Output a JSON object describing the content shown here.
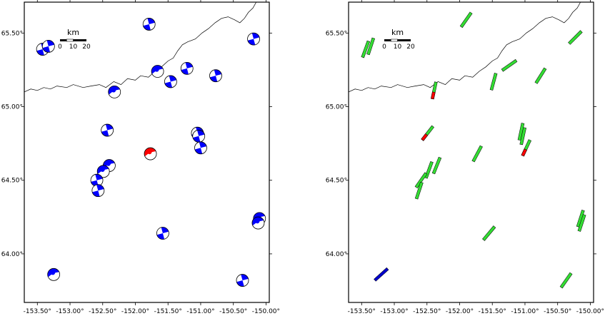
{
  "maps": [
    {
      "id": "left",
      "symbol": "beachball",
      "x_ticks": [
        "-153.50°",
        "-153.00°",
        "-152.50°",
        "-152.00°",
        "-151.50°",
        "-151.00°",
        "-150.50°",
        "-150.00°"
      ],
      "y_ticks": [
        "65.50°",
        "65.00°",
        "64.50°",
        "64.00°"
      ],
      "scale_bar": {
        "unit": "km",
        "labels": [
          "0",
          "10",
          "20"
        ]
      },
      "events": [
        {
          "lon": -153.42,
          "lat": 65.39,
          "color": "#0000ff",
          "style": "strike"
        },
        {
          "lon": -153.33,
          "lat": 65.41,
          "color": "#0000ff",
          "style": "strike"
        },
        {
          "lon": -151.79,
          "lat": 65.56,
          "color": "#0000ff",
          "style": "strike"
        },
        {
          "lon": -150.19,
          "lat": 65.46,
          "color": "#0000ff",
          "style": "strike"
        },
        {
          "lon": -151.66,
          "lat": 65.24,
          "color": "#0000ff",
          "style": "thrust"
        },
        {
          "lon": -151.21,
          "lat": 65.26,
          "color": "#0000ff",
          "style": "strike"
        },
        {
          "lon": -150.77,
          "lat": 65.21,
          "color": "#0000ff",
          "style": "strike"
        },
        {
          "lon": -151.46,
          "lat": 65.17,
          "color": "#0000ff",
          "style": "strike"
        },
        {
          "lon": -152.32,
          "lat": 65.1,
          "color": "#0000ff",
          "style": "thrust"
        },
        {
          "lon": -152.43,
          "lat": 64.84,
          "color": "#0000ff",
          "style": "strike"
        },
        {
          "lon": -151.05,
          "lat": 64.82,
          "color": "#0000ff",
          "style": "strike"
        },
        {
          "lon": -151.03,
          "lat": 64.8,
          "color": "#0000ff",
          "style": "strike"
        },
        {
          "lon": -151.0,
          "lat": 64.72,
          "color": "#0000ff",
          "style": "strike"
        },
        {
          "lon": -151.77,
          "lat": 64.68,
          "color": "#ff0000",
          "style": "thrust"
        },
        {
          "lon": -152.4,
          "lat": 64.6,
          "color": "#0000ff",
          "style": "thrust"
        },
        {
          "lon": -152.49,
          "lat": 64.56,
          "color": "#0000ff",
          "style": "thrust"
        },
        {
          "lon": -152.59,
          "lat": 64.5,
          "color": "#0000ff",
          "style": "strike"
        },
        {
          "lon": -152.57,
          "lat": 64.43,
          "color": "#0000ff",
          "style": "strike"
        },
        {
          "lon": -150.1,
          "lat": 64.24,
          "color": "#0000ff",
          "style": "thrust"
        },
        {
          "lon": -150.12,
          "lat": 64.21,
          "color": "#0000ff",
          "style": "thrust"
        },
        {
          "lon": -151.58,
          "lat": 64.14,
          "color": "#0000ff",
          "style": "strike"
        },
        {
          "lon": -153.25,
          "lat": 63.86,
          "color": "#0000ff",
          "style": "thrust"
        },
        {
          "lon": -150.36,
          "lat": 63.82,
          "color": "#0000ff",
          "style": "strike"
        }
      ]
    },
    {
      "id": "right",
      "symbol": "bar",
      "x_ticks": [
        "-153.50°",
        "-153.00°",
        "-152.50°",
        "-152.00°",
        "-151.50°",
        "-151.00°",
        "-150.50°",
        "-150.00°"
      ],
      "y_ticks": [
        "65.50°",
        "65.00°",
        "64.50°",
        "64.00°"
      ],
      "scale_bar": {
        "unit": "km",
        "labels": [
          "0",
          "10",
          "20"
        ]
      },
      "events": [
        {
          "lon": -153.44,
          "lat": 65.39,
          "angle": 20,
          "color": "#33dd33"
        },
        {
          "lon": -153.36,
          "lat": 65.41,
          "angle": 18,
          "color": "#33dd33"
        },
        {
          "lon": -151.9,
          "lat": 65.59,
          "angle": 35,
          "color": "#33dd33"
        },
        {
          "lon": -150.23,
          "lat": 65.47,
          "angle": 45,
          "color": "#33dd33"
        },
        {
          "lon": -151.24,
          "lat": 65.28,
          "angle": 55,
          "color": "#33dd33"
        },
        {
          "lon": -150.76,
          "lat": 65.21,
          "angle": 32,
          "color": "#33dd33"
        },
        {
          "lon": -151.48,
          "lat": 65.17,
          "angle": 15,
          "color": "#33dd33"
        },
        {
          "lon": -152.39,
          "lat": 65.11,
          "angle": 12,
          "color": "#33dd33",
          "tip": "#ff0000"
        },
        {
          "lon": -152.49,
          "lat": 64.82,
          "angle": 38,
          "color": "#33dd33",
          "tip": "#ff0000"
        },
        {
          "lon": -151.06,
          "lat": 64.83,
          "angle": 12,
          "color": "#33dd33"
        },
        {
          "lon": -151.03,
          "lat": 64.8,
          "angle": 12,
          "color": "#33dd33"
        },
        {
          "lon": -150.98,
          "lat": 64.72,
          "angle": 25,
          "color": "#33dd33",
          "tip": "#ff0000"
        },
        {
          "lon": -151.73,
          "lat": 64.68,
          "angle": 28,
          "color": "#33dd33"
        },
        {
          "lon": -152.35,
          "lat": 64.6,
          "angle": 22,
          "color": "#33dd33"
        },
        {
          "lon": -152.47,
          "lat": 64.57,
          "angle": 20,
          "color": "#33dd33"
        },
        {
          "lon": -152.59,
          "lat": 64.5,
          "angle": 35,
          "color": "#33dd33"
        },
        {
          "lon": -152.62,
          "lat": 64.43,
          "angle": 18,
          "color": "#33dd33"
        },
        {
          "lon": -150.15,
          "lat": 64.24,
          "angle": 18,
          "color": "#33dd33"
        },
        {
          "lon": -150.13,
          "lat": 64.21,
          "angle": 18,
          "color": "#33dd33"
        },
        {
          "lon": -151.55,
          "lat": 64.14,
          "angle": 40,
          "color": "#33dd33"
        },
        {
          "lon": -153.2,
          "lat": 63.86,
          "angle": 48,
          "color": "#0000cc"
        },
        {
          "lon": -150.37,
          "lat": 63.82,
          "angle": 35,
          "color": "#33dd33"
        }
      ]
    }
  ]
}
